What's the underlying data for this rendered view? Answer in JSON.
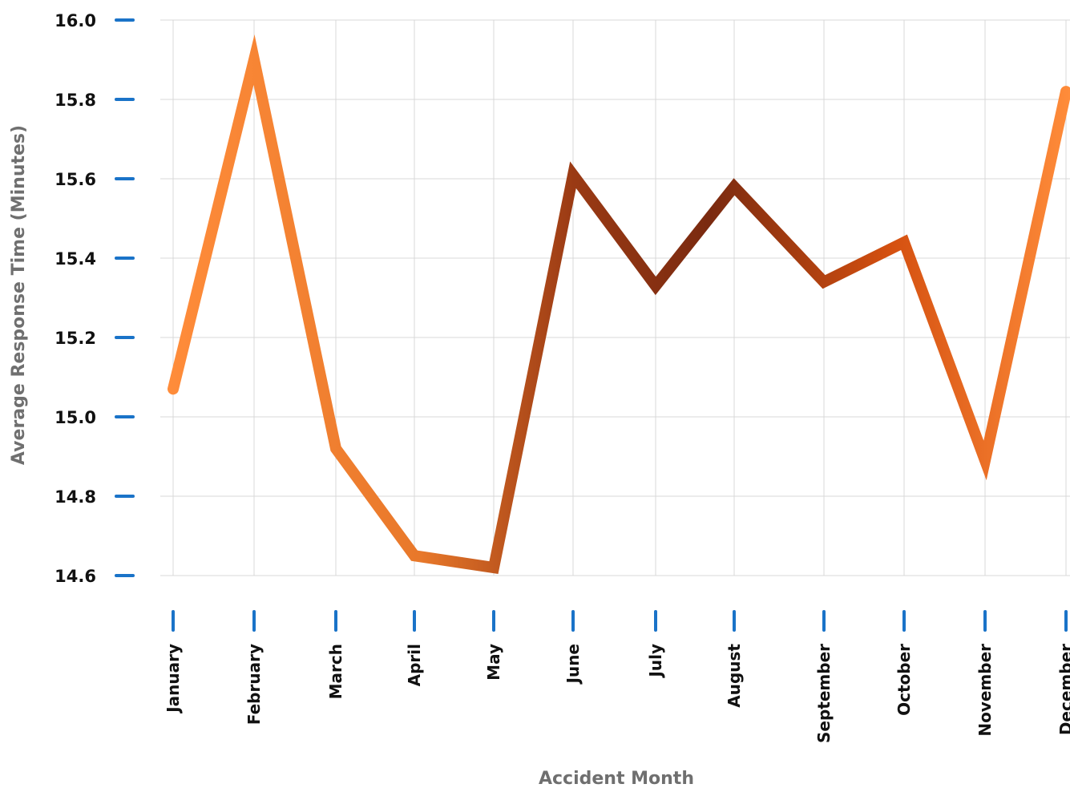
{
  "chart_data": {
    "type": "line",
    "categories": [
      "January",
      "February",
      "March",
      "April",
      "May",
      "June",
      "July",
      "August",
      "September",
      "October",
      "November",
      "December"
    ],
    "series": [
      {
        "values": [
          15.07,
          15.9,
          14.92,
          14.65,
          14.62,
          15.61,
          15.33,
          15.58,
          15.34,
          15.44,
          14.89,
          15.82
        ]
      }
    ],
    "xlabel": "Accident Month",
    "ylabel": "Average Response Time (Minutes)",
    "ylim": [
      14.6,
      16.0
    ],
    "yticks": [
      "14.6",
      "14.8",
      "15.0",
      "15.2",
      "15.4",
      "15.6",
      "15.8",
      "16.0"
    ],
    "grid": true,
    "colors": {
      "tick_mark": "#1a73c8",
      "line_gradient": [
        "#ff8c3a",
        "#7a2a10",
        "#e05a10"
      ]
    }
  }
}
